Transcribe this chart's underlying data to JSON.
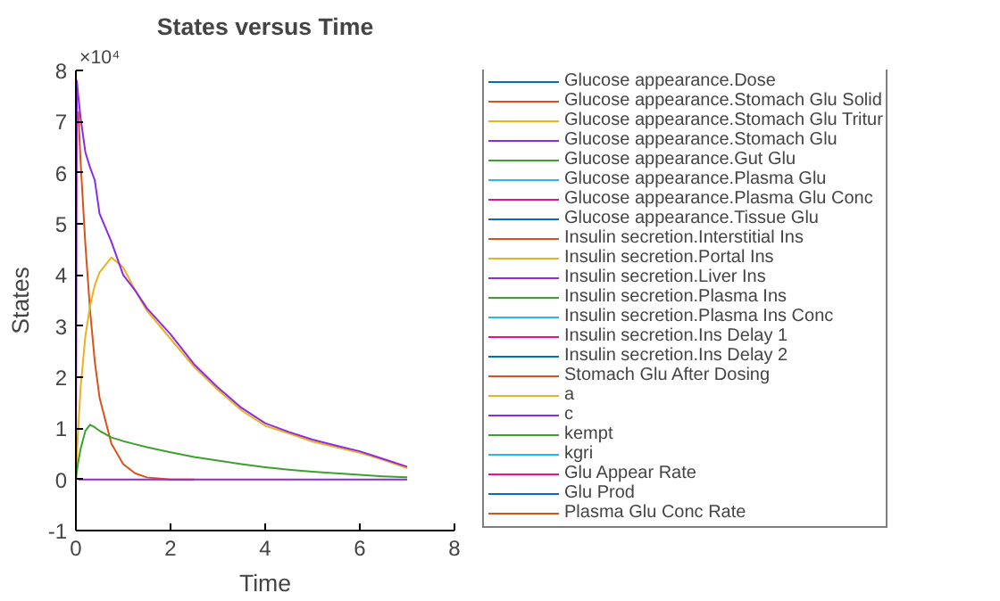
{
  "chart_data": {
    "type": "line",
    "title": "States versus Time",
    "xlabel": "Time",
    "ylabel": "States",
    "annotations": [
      "×10⁴"
    ],
    "xlim": [
      0,
      8
    ],
    "xticks": [
      0,
      2,
      4,
      6,
      8
    ],
    "ylim": [
      -1,
      8
    ],
    "yticks": [
      -1,
      0,
      1,
      2,
      3,
      4,
      5,
      6,
      7,
      8
    ],
    "legend": "right",
    "line_style": "solid",
    "x": [
      0,
      0.02,
      0.05,
      0.1,
      0.2,
      0.3,
      0.4,
      0.5,
      0.75,
      1,
      1.25,
      1.5,
      2,
      2.5,
      3,
      3.5,
      4,
      4.5,
      5,
      5.5,
      6,
      6.5,
      7
    ],
    "series": [
      {
        "name": "Glucose appearance.Dose",
        "color": "#0072bd",
        "values": [
          null,
          null,
          null,
          null,
          null,
          null,
          null,
          null,
          null,
          null,
          null,
          null,
          null,
          null,
          null,
          null,
          null,
          null,
          null,
          null,
          null,
          null,
          null
        ]
      },
      {
        "name": "Glucose appearance.Stomach Glu Solid",
        "color": "#d95319",
        "values": [
          null,
          null,
          7.2,
          6.2,
          4.6,
          3.3,
          2.3,
          1.6,
          0.7,
          0.3,
          0.12,
          0.04,
          0,
          0,
          null,
          null,
          null,
          null,
          null,
          null,
          null,
          null,
          null
        ]
      },
      {
        "name": "Glucose appearance.Stomach Glu Tritur",
        "color": "#edb120",
        "values": [
          0,
          0.5,
          1.0,
          1.8,
          2.8,
          3.4,
          3.8,
          4.05,
          4.34,
          4.15,
          3.7,
          3.3,
          2.75,
          2.2,
          1.75,
          1.35,
          1.05,
          0.9,
          0.74,
          0.63,
          0.52,
          0.38,
          0.22
        ]
      },
      {
        "name": "Glucose appearance.Stomach Glu",
        "color": "#8b2be2",
        "values": [
          0,
          7.8,
          7.5,
          7.07,
          6.4,
          6.1,
          5.85,
          5.2,
          4.65,
          4.0,
          3.7,
          3.35,
          2.84,
          2.25,
          1.8,
          1.4,
          1.1,
          0.93,
          0.78,
          0.66,
          0.55,
          0.4,
          0.25
        ]
      },
      {
        "name": "Glucose appearance.Gut Glu",
        "color": "#3da12e",
        "values": [
          0,
          0.15,
          0.35,
          0.6,
          0.95,
          1.07,
          1.02,
          0.95,
          0.82,
          0.75,
          0.69,
          0.63,
          0.53,
          0.44,
          0.37,
          0.3,
          0.24,
          0.19,
          0.15,
          0.12,
          0.09,
          0.06,
          0.04
        ]
      },
      {
        "name": "Glucose appearance.Plasma Glu",
        "color": "#1ebcf0",
        "values": [
          null,
          null,
          null,
          null,
          null,
          null,
          null,
          null,
          null,
          null,
          null,
          null,
          null,
          null,
          null,
          null,
          null,
          null,
          null,
          null,
          null,
          null,
          null
        ]
      },
      {
        "name": "Glucose appearance.Plasma Glu Conc",
        "color": "#e3148c",
        "values": [
          null,
          null,
          null,
          null,
          null,
          null,
          null,
          null,
          null,
          null,
          null,
          null,
          null,
          null,
          null,
          null,
          null,
          null,
          null,
          null,
          null,
          null,
          null
        ]
      },
      {
        "name": "Glucose appearance.Tissue Glu",
        "color": "#0072bd",
        "values": [
          null,
          null,
          null,
          null,
          null,
          null,
          null,
          null,
          null,
          null,
          null,
          null,
          null,
          null,
          null,
          null,
          null,
          null,
          null,
          null,
          null,
          null,
          null
        ]
      },
      {
        "name": "Insulin secretion.Interstitial Ins",
        "color": "#d95319",
        "values": [
          null,
          null,
          null,
          null,
          null,
          null,
          null,
          null,
          null,
          null,
          null,
          null,
          null,
          null,
          null,
          null,
          null,
          null,
          null,
          null,
          null,
          null,
          null
        ]
      },
      {
        "name": "Insulin secretion.Portal Ins",
        "color": "#edb120",
        "values": [
          null,
          null,
          null,
          null,
          null,
          null,
          null,
          null,
          null,
          null,
          null,
          null,
          null,
          null,
          null,
          null,
          null,
          null,
          null,
          null,
          null,
          null,
          null
        ]
      },
      {
        "name": "Insulin secretion.Liver Ins",
        "color": "#8b2be2",
        "values": [
          null,
          null,
          0,
          0,
          0,
          0,
          0,
          0,
          0,
          0,
          0,
          0,
          0,
          0,
          0,
          0,
          0,
          0,
          0,
          0,
          0,
          0,
          0
        ]
      },
      {
        "name": "Insulin secretion.Plasma Ins",
        "color": "#3da12e",
        "values": [
          null,
          null,
          null,
          null,
          null,
          null,
          null,
          null,
          null,
          null,
          null,
          null,
          null,
          null,
          null,
          null,
          null,
          null,
          null,
          null,
          null,
          null,
          null
        ]
      },
      {
        "name": "Insulin secretion.Plasma Ins Conc",
        "color": "#1ebcf0",
        "values": [
          null,
          null,
          null,
          null,
          null,
          null,
          null,
          null,
          null,
          null,
          null,
          null,
          null,
          null,
          null,
          null,
          null,
          null,
          null,
          null,
          null,
          null,
          null
        ]
      },
      {
        "name": "Insulin secretion.Ins Delay 1",
        "color": "#e3148c",
        "values": [
          null,
          null,
          null,
          null,
          null,
          null,
          null,
          null,
          null,
          null,
          null,
          null,
          null,
          null,
          null,
          null,
          null,
          null,
          null,
          null,
          null,
          null,
          null
        ]
      },
      {
        "name": "Insulin secretion.Ins Delay 2",
        "color": "#0072bd",
        "values": [
          null,
          null,
          null,
          null,
          null,
          null,
          null,
          null,
          null,
          null,
          null,
          null,
          null,
          null,
          null,
          null,
          null,
          null,
          null,
          null,
          null,
          null,
          null
        ]
      },
      {
        "name": "Stomach Glu After Dosing",
        "color": "#d95319",
        "values": [
          null,
          null,
          null,
          null,
          null,
          null,
          null,
          null,
          null,
          null,
          null,
          null,
          null,
          null,
          null,
          null,
          null,
          null,
          null,
          null,
          null,
          null,
          null
        ]
      },
      {
        "name": "a",
        "color": "#edb120",
        "values": [
          null,
          null,
          null,
          null,
          null,
          null,
          null,
          null,
          null,
          null,
          null,
          null,
          null,
          null,
          null,
          null,
          null,
          null,
          null,
          null,
          null,
          null,
          null
        ]
      },
      {
        "name": "c",
        "color": "#8b2be2",
        "values": [
          null,
          null,
          null,
          null,
          null,
          null,
          null,
          null,
          null,
          null,
          null,
          null,
          null,
          null,
          null,
          null,
          null,
          null,
          null,
          null,
          null,
          null,
          null
        ]
      },
      {
        "name": "kempt",
        "color": "#3da12e",
        "values": [
          null,
          null,
          null,
          null,
          null,
          null,
          null,
          null,
          null,
          null,
          null,
          null,
          null,
          null,
          null,
          null,
          null,
          null,
          null,
          null,
          null,
          null,
          null
        ]
      },
      {
        "name": "kgri",
        "color": "#1ebcf0",
        "values": [
          null,
          null,
          null,
          null,
          null,
          null,
          null,
          null,
          null,
          null,
          null,
          null,
          null,
          null,
          null,
          null,
          null,
          null,
          null,
          null,
          null,
          null,
          null
        ]
      },
      {
        "name": "Glu Appear Rate",
        "color": "#e3148c",
        "values": [
          null,
          null,
          null,
          null,
          null,
          null,
          null,
          null,
          null,
          null,
          null,
          null,
          null,
          null,
          null,
          null,
          null,
          null,
          null,
          null,
          null,
          null,
          null
        ]
      },
      {
        "name": "Glu Prod",
        "color": "#0072bd",
        "values": [
          null,
          null,
          null,
          null,
          null,
          null,
          null,
          null,
          null,
          null,
          null,
          null,
          null,
          null,
          null,
          null,
          null,
          null,
          null,
          null,
          null,
          null,
          null
        ]
      },
      {
        "name": "Plasma Glu Conc Rate",
        "color": "#d95319",
        "values": [
          null,
          null,
          null,
          null,
          null,
          null,
          null,
          null,
          null,
          null,
          null,
          null,
          null,
          null,
          null,
          null,
          null,
          null,
          null,
          null,
          null,
          null,
          null
        ]
      }
    ]
  }
}
